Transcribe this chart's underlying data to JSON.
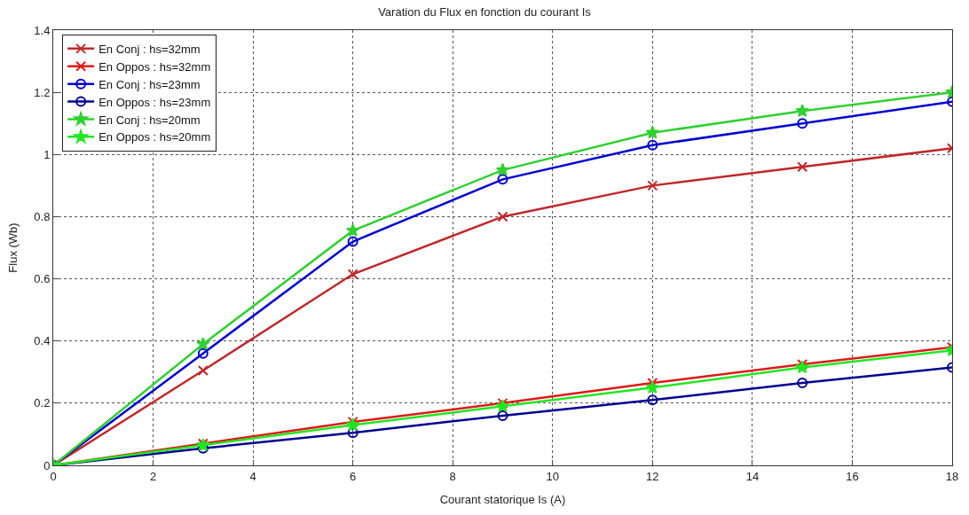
{
  "chart_data": {
    "type": "line",
    "title": "Varation du Flux en fonction du courant Is",
    "xlabel": "Courant statorique Is (A)",
    "ylabel": "Flux (Wb)",
    "x": [
      0,
      3,
      6,
      9,
      12,
      15,
      18
    ],
    "series": [
      {
        "name": "En Conj : hs=32mm",
        "color": "#c0282a",
        "marker": "cross",
        "values": [
          0,
          0.305,
          0.615,
          0.8,
          0.9,
          0.96,
          1.02
        ]
      },
      {
        "name": "En Oppos : hs=32mm",
        "color": "#e01818",
        "marker": "cross",
        "values": [
          0,
          0.07,
          0.14,
          0.2,
          0.265,
          0.325,
          0.38
        ]
      },
      {
        "name": "En Conj : hs=23mm",
        "color": "#0000d0",
        "marker": "circle",
        "values": [
          0,
          0.36,
          0.72,
          0.92,
          1.03,
          1.1,
          1.17
        ]
      },
      {
        "name": "En Oppos : hs=23mm",
        "color": "#000090",
        "marker": "circle",
        "values": [
          0,
          0.055,
          0.105,
          0.16,
          0.21,
          0.265,
          0.315
        ]
      },
      {
        "name": "En Conj : hs=20mm",
        "color": "#30d030",
        "marker": "star",
        "values": [
          0,
          0.39,
          0.755,
          0.95,
          1.07,
          1.14,
          1.2
        ]
      },
      {
        "name": "En Oppos : hs=20mm",
        "color": "#20e820",
        "marker": "star",
        "values": [
          0,
          0.065,
          0.13,
          0.19,
          0.25,
          0.315,
          0.37
        ]
      }
    ],
    "xlim": [
      0,
      18
    ],
    "xticks": [
      0,
      2,
      4,
      6,
      8,
      10,
      12,
      14,
      16,
      18
    ],
    "ylim": [
      0,
      1.4
    ],
    "yticks": [
      0,
      0.2,
      0.4,
      0.6,
      0.8,
      1,
      1.2,
      1.4
    ],
    "grid": true,
    "legend": "top left",
    "line_style": "solid"
  }
}
